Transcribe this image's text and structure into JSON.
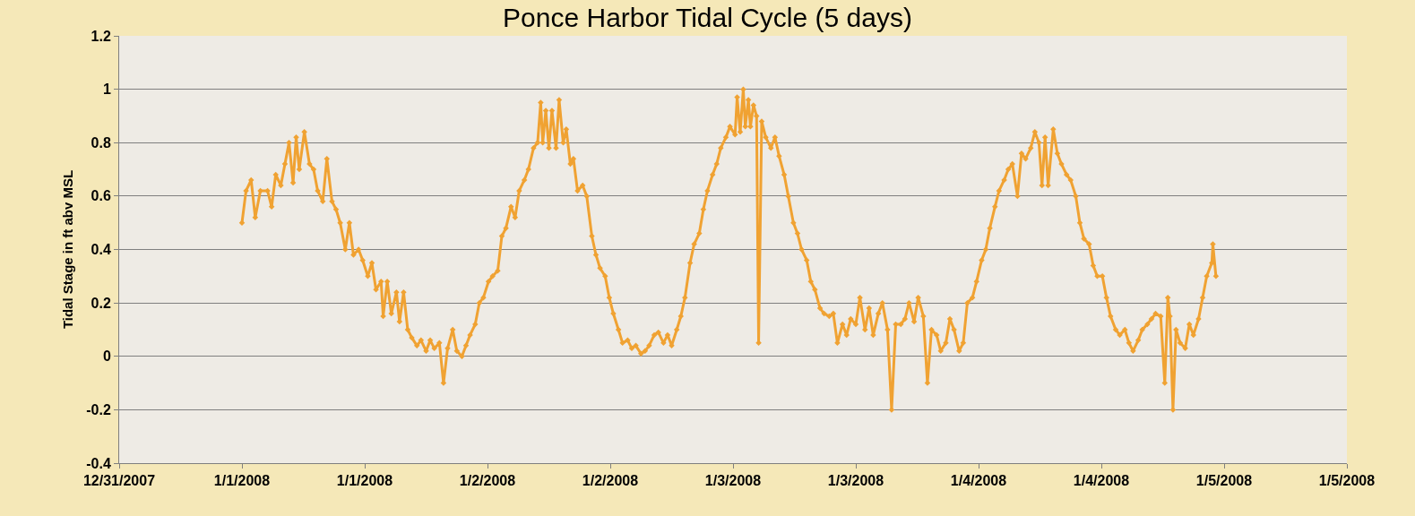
{
  "chart_data": {
    "type": "line",
    "title": "Ponce Harbor Tidal Cycle (5 days)",
    "ylabel": "Tidal Stage in ft abv MSL",
    "xlim": [
      "2007-12-31T12:00",
      "2008-01-05T12:00"
    ],
    "xticks": [
      {
        "value": "2007-12-31T12:00",
        "label": "12/31/2007"
      },
      {
        "value": "2008-01-01T00:00",
        "label": "1/1/2008"
      },
      {
        "value": "2008-01-01T12:00",
        "label": "1/1/2008"
      },
      {
        "value": "2008-01-02T00:00",
        "label": "1/2/2008"
      },
      {
        "value": "2008-01-02T12:00",
        "label": "1/2/2008"
      },
      {
        "value": "2008-01-03T00:00",
        "label": "1/3/2008"
      },
      {
        "value": "2008-01-03T12:00",
        "label": "1/3/2008"
      },
      {
        "value": "2008-01-04T00:00",
        "label": "1/4/2008"
      },
      {
        "value": "2008-01-04T12:00",
        "label": "1/4/2008"
      },
      {
        "value": "2008-01-05T00:00",
        "label": "1/5/2008"
      },
      {
        "value": "2008-01-05T12:00",
        "label": "1/5/2008"
      }
    ],
    "ylim": [
      -0.4,
      1.2
    ],
    "yticks": [
      -0.4,
      -0.2,
      0,
      0.2,
      0.4,
      0.6,
      0.8,
      1,
      1.2
    ],
    "grid": "y",
    "marker": "diamond",
    "line_style": "solid",
    "series": [
      {
        "color": "#f0a232",
        "x": [
          "2008-01-01T00:00",
          "2008-01-01T00:24",
          "2008-01-01T00:54",
          "2008-01-01T01:18",
          "2008-01-01T01:48",
          "2008-01-01T02:30",
          "2008-01-01T02:54",
          "2008-01-01T03:18",
          "2008-01-01T03:48",
          "2008-01-01T04:12",
          "2008-01-01T04:36",
          "2008-01-01T05:00",
          "2008-01-01T05:18",
          "2008-01-01T05:36",
          "2008-01-01T06:06",
          "2008-01-01T06:36",
          "2008-01-01T07:00",
          "2008-01-01T07:24",
          "2008-01-01T07:54",
          "2008-01-01T08:18",
          "2008-01-01T08:48",
          "2008-01-01T09:12",
          "2008-01-01T09:36",
          "2008-01-01T10:06",
          "2008-01-01T10:30",
          "2008-01-01T10:54",
          "2008-01-01T11:24",
          "2008-01-01T11:48",
          "2008-01-01T12:18",
          "2008-01-01T12:42",
          "2008-01-01T13:06",
          "2008-01-01T13:36",
          "2008-01-01T13:48",
          "2008-01-01T14:12",
          "2008-01-01T14:36",
          "2008-01-01T15:06",
          "2008-01-01T15:24",
          "2008-01-01T15:48",
          "2008-01-01T16:12",
          "2008-01-01T16:36",
          "2008-01-01T17:06",
          "2008-01-01T17:30",
          "2008-01-01T18:00",
          "2008-01-01T18:24",
          "2008-01-01T18:48",
          "2008-01-01T19:18",
          "2008-01-01T19:42",
          "2008-01-01T20:06",
          "2008-01-01T20:36",
          "2008-01-01T21:00",
          "2008-01-01T21:30",
          "2008-01-01T21:54",
          "2008-01-01T22:18",
          "2008-01-01T22:48",
          "2008-01-01T23:12",
          "2008-01-01T23:36",
          "2008-01-02T00:06",
          "2008-01-02T00:30",
          "2008-01-02T01:00",
          "2008-01-02T01:24",
          "2008-01-02T01:48",
          "2008-01-02T02:18",
          "2008-01-02T02:42",
          "2008-01-02T03:06",
          "2008-01-02T03:36",
          "2008-01-02T04:00",
          "2008-01-02T04:30",
          "2008-01-02T04:54",
          "2008-01-02T05:12",
          "2008-01-02T05:24",
          "2008-01-02T05:42",
          "2008-01-02T06:00",
          "2008-01-02T06:18",
          "2008-01-02T06:42",
          "2008-01-02T07:00",
          "2008-01-02T07:24",
          "2008-01-02T07:42",
          "2008-01-02T08:06",
          "2008-01-02T08:24",
          "2008-01-02T08:48",
          "2008-01-02T09:18",
          "2008-01-02T09:42",
          "2008-01-02T10:12",
          "2008-01-02T10:36",
          "2008-01-02T11:00",
          "2008-01-02T11:30",
          "2008-01-02T11:54",
          "2008-01-02T12:18",
          "2008-01-02T12:48",
          "2008-01-02T13:12",
          "2008-01-02T13:42",
          "2008-01-02T14:06",
          "2008-01-02T14:30",
          "2008-01-02T15:00",
          "2008-01-02T15:24",
          "2008-01-02T15:48",
          "2008-01-02T16:18",
          "2008-01-02T16:42",
          "2008-01-02T17:12",
          "2008-01-02T17:36",
          "2008-01-02T18:00",
          "2008-01-02T18:30",
          "2008-01-02T18:54",
          "2008-01-02T19:18",
          "2008-01-02T19:48",
          "2008-01-02T20:12",
          "2008-01-02T20:42",
          "2008-01-02T21:06",
          "2008-01-02T21:30",
          "2008-01-02T22:00",
          "2008-01-02T22:24",
          "2008-01-02T22:48",
          "2008-01-02T23:18",
          "2008-01-02T23:42",
          "2008-01-03T00:12",
          "2008-01-03T00:24",
          "2008-01-03T00:42",
          "2008-01-03T01:00",
          "2008-01-03T01:12",
          "2008-01-03T01:30",
          "2008-01-03T01:42",
          "2008-01-03T02:00",
          "2008-01-03T02:18",
          "2008-01-03T02:30",
          "2008-01-03T02:48",
          "2008-01-03T03:12",
          "2008-01-03T03:42",
          "2008-01-03T04:06",
          "2008-01-03T04:30",
          "2008-01-03T05:00",
          "2008-01-03T05:24",
          "2008-01-03T05:54",
          "2008-01-03T06:18",
          "2008-01-03T06:42",
          "2008-01-03T07:12",
          "2008-01-03T07:36",
          "2008-01-03T08:00",
          "2008-01-03T08:30",
          "2008-01-03T08:54",
          "2008-01-03T09:24",
          "2008-01-03T09:48",
          "2008-01-03T10:12",
          "2008-01-03T10:42",
          "2008-01-03T11:06",
          "2008-01-03T11:30",
          "2008-01-03T12:00",
          "2008-01-03T12:24",
          "2008-01-03T12:54",
          "2008-01-03T13:18",
          "2008-01-03T13:42",
          "2008-01-03T14:12",
          "2008-01-03T14:36",
          "2008-01-03T15:06",
          "2008-01-03T15:30",
          "2008-01-03T15:54",
          "2008-01-03T16:24",
          "2008-01-03T16:48",
          "2008-01-03T17:12",
          "2008-01-03T17:42",
          "2008-01-03T18:06",
          "2008-01-03T18:36",
          "2008-01-03T19:00",
          "2008-01-03T19:24",
          "2008-01-03T19:54",
          "2008-01-03T20:18",
          "2008-01-03T20:48",
          "2008-01-03T21:12",
          "2008-01-03T21:36",
          "2008-01-03T22:06",
          "2008-01-03T22:30",
          "2008-01-03T22:54",
          "2008-01-03T23:24",
          "2008-01-03T23:48",
          "2008-01-04T00:18",
          "2008-01-04T00:42",
          "2008-01-04T01:06",
          "2008-01-04T01:36",
          "2008-01-04T02:00",
          "2008-01-04T02:30",
          "2008-01-04T02:54",
          "2008-01-04T03:18",
          "2008-01-04T03:48",
          "2008-01-04T04:12",
          "2008-01-04T04:36",
          "2008-01-04T05:06",
          "2008-01-04T05:30",
          "2008-01-04T05:54",
          "2008-01-04T06:12",
          "2008-01-04T06:30",
          "2008-01-04T06:48",
          "2008-01-04T07:18",
          "2008-01-04T07:42",
          "2008-01-04T08:06",
          "2008-01-04T08:36",
          "2008-01-04T09:00",
          "2008-01-04T09:30",
          "2008-01-04T09:54",
          "2008-01-04T10:18",
          "2008-01-04T10:48",
          "2008-01-04T11:12",
          "2008-01-04T11:36",
          "2008-01-04T12:06",
          "2008-01-04T12:30",
          "2008-01-04T12:54",
          "2008-01-04T13:24",
          "2008-01-04T13:48",
          "2008-01-04T14:18",
          "2008-01-04T14:42",
          "2008-01-04T15:06",
          "2008-01-04T15:36",
          "2008-01-04T16:00",
          "2008-01-04T16:30",
          "2008-01-04T16:54",
          "2008-01-04T17:18",
          "2008-01-04T17:48",
          "2008-01-04T18:12",
          "2008-01-04T18:30",
          "2008-01-04T18:42",
          "2008-01-04T19:00",
          "2008-01-04T19:18",
          "2008-01-04T19:42",
          "2008-01-04T20:12",
          "2008-01-04T20:36",
          "2008-01-04T21:00",
          "2008-01-04T21:30",
          "2008-01-04T21:54",
          "2008-01-04T22:18",
          "2008-01-04T22:48",
          "2008-01-04T22:54",
          "2008-01-04T23:12"
        ],
        "values": [
          0.5,
          0.62,
          0.66,
          0.52,
          0.62,
          0.62,
          0.56,
          0.68,
          0.64,
          0.72,
          0.8,
          0.65,
          0.82,
          0.7,
          0.84,
          0.72,
          0.7,
          0.62,
          0.58,
          0.74,
          0.58,
          0.55,
          0.5,
          0.4,
          0.5,
          0.38,
          0.4,
          0.36,
          0.3,
          0.35,
          0.25,
          0.28,
          0.15,
          0.28,
          0.16,
          0.24,
          0.13,
          0.24,
          0.1,
          0.07,
          0.04,
          0.06,
          0.02,
          0.06,
          0.03,
          0.05,
          -0.1,
          0.03,
          0.1,
          0.02,
          0.0,
          0.04,
          0.08,
          0.12,
          0.2,
          0.22,
          0.28,
          0.3,
          0.32,
          0.45,
          0.48,
          0.56,
          0.52,
          0.62,
          0.66,
          0.7,
          0.78,
          0.8,
          0.95,
          0.8,
          0.92,
          0.78,
          0.92,
          0.78,
          0.96,
          0.8,
          0.85,
          0.72,
          0.74,
          0.62,
          0.64,
          0.6,
          0.45,
          0.38,
          0.33,
          0.3,
          0.22,
          0.16,
          0.1,
          0.05,
          0.06,
          0.03,
          0.04,
          0.01,
          0.02,
          0.04,
          0.08,
          0.09,
          0.05,
          0.08,
          0.04,
          0.1,
          0.15,
          0.22,
          0.35,
          0.42,
          0.46,
          0.55,
          0.62,
          0.68,
          0.72,
          0.78,
          0.82,
          0.86,
          0.83,
          0.97,
          0.84,
          1.0,
          0.86,
          0.96,
          0.86,
          0.94,
          0.9,
          0.05,
          0.88,
          0.82,
          0.78,
          0.82,
          0.75,
          0.68,
          0.6,
          0.5,
          0.46,
          0.4,
          0.36,
          0.28,
          0.25,
          0.18,
          0.16,
          0.15,
          0.16,
          0.05,
          0.12,
          0.08,
          0.14,
          0.12,
          0.22,
          0.1,
          0.18,
          0.08,
          0.16,
          0.2,
          0.1,
          -0.2,
          0.12,
          0.12,
          0.14,
          0.2,
          0.13,
          0.22,
          0.15,
          -0.1,
          0.1,
          0.08,
          0.02,
          0.05,
          0.14,
          0.1,
          0.02,
          0.05,
          0.2,
          0.22,
          0.28,
          0.36,
          0.4,
          0.48,
          0.56,
          0.62,
          0.66,
          0.7,
          0.72,
          0.6,
          0.76,
          0.74,
          0.78,
          0.84,
          0.8,
          0.64,
          0.82,
          0.64,
          0.85,
          0.76,
          0.72,
          0.68,
          0.66,
          0.6,
          0.5,
          0.44,
          0.42,
          0.34,
          0.3,
          0.3,
          0.22,
          0.15,
          0.1,
          0.08,
          0.1,
          0.05,
          0.02,
          0.06,
          0.1,
          0.12,
          0.14,
          0.16,
          0.15,
          -0.1,
          0.22,
          0.15,
          -0.2,
          0.1,
          0.05,
          0.03,
          0.12,
          0.08,
          0.14,
          0.22,
          0.3,
          0.35,
          0.42,
          0.3
        ]
      }
    ]
  }
}
